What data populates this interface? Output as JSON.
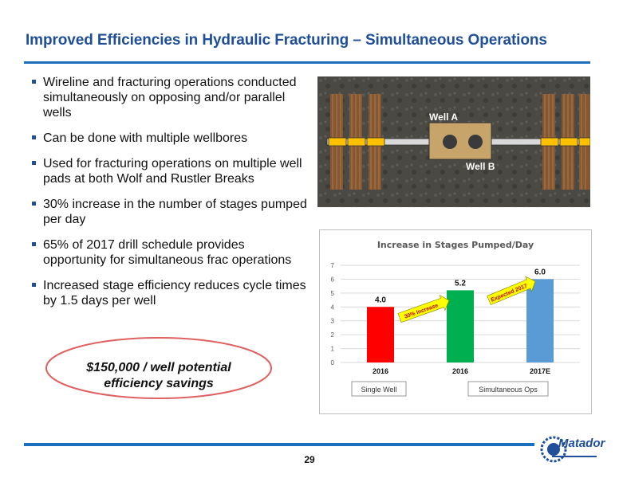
{
  "header": {
    "title": "Improved Efficiencies in Hydraulic Fracturing – Simultaneous Operations"
  },
  "bullets": [
    "Wireline and fracturing operations conducted simultaneously on opposing and/or parallel wells",
    "Can be done with multiple wellbores",
    "Used for fracturing operations on multiple well pads at both Wolf and Rustler Breaks",
    "30% increase in the number of stages pumped per day",
    "65% of 2017 drill schedule provides opportunity for simultaneous frac operations",
    "Increased stage efficiency reduces cycle times by 1.5 days per well"
  ],
  "diagram": {
    "well_a_label": "Well A",
    "well_b_label": "Well B"
  },
  "callout": {
    "line1": "$150,000 / well potential",
    "line2": "efficiency savings"
  },
  "footer": {
    "page_number": "29",
    "logo_text": "Matador"
  },
  "colors": {
    "title": "#1f4e9b",
    "rule": "#1a6fbf",
    "bar_single": "#ff0000",
    "bar_simul": "#00b050",
    "bar_expected": "#5b9bd5",
    "arrow": "#ffff00",
    "oval": "#e06060"
  },
  "chart_data": {
    "type": "bar",
    "title": "Increase in Stages Pumped/Day",
    "categories": [
      "2016",
      "2016",
      "2017E"
    ],
    "values": [
      4.0,
      5.2,
      6.0
    ],
    "value_labels": [
      "4.0",
      "5.2",
      "6.0"
    ],
    "ylim": [
      0,
      7
    ],
    "yticks": [
      0,
      1,
      2,
      3,
      4,
      5,
      6,
      7
    ],
    "grid": true,
    "group_labels": [
      "Single Well",
      "Simultaneous Ops"
    ],
    "annotations": [
      "30% Increase",
      "Expected 2017"
    ],
    "xlabel": "",
    "ylabel": ""
  }
}
